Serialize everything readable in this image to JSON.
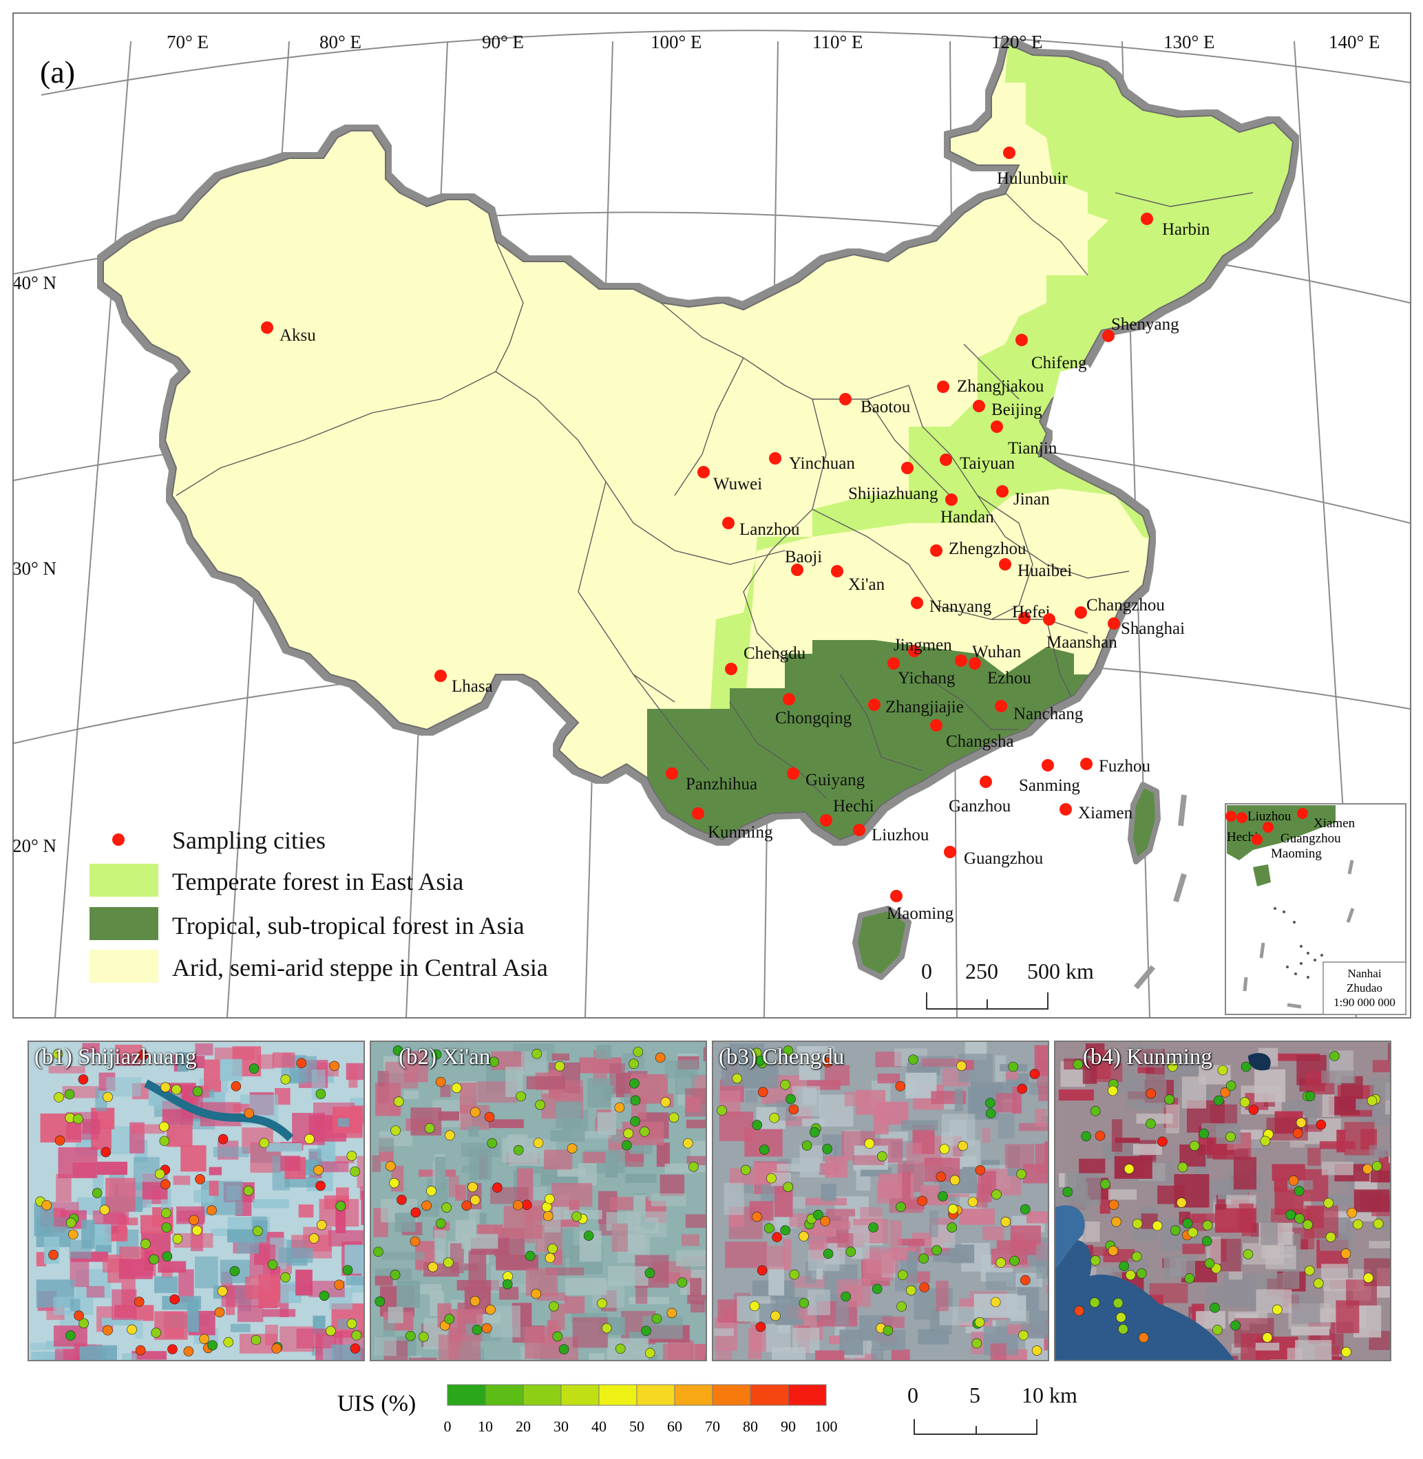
{
  "panel_a_label": "(a)",
  "longitude_labels": [
    "70° E",
    "80° E",
    "90° E",
    "100° E",
    "110° E",
    "120° E",
    "130° E",
    "140° E"
  ],
  "latitude_labels": [
    "40° N",
    "30° N",
    "20° N"
  ],
  "legend": {
    "sampling": "Sampling cities",
    "temperate": "Temperate forest in East Asia",
    "tropical": "Tropical, sub-tropical forest in Asia",
    "arid": "Arid, semi-arid steppe in Central Asia"
  },
  "colors": {
    "temperate": "#c9f57a",
    "tropical": "#5e8c46",
    "arid": "#fdfdc6",
    "city_dot": "#ff1a0a",
    "border_shadow": "#8c8c8c"
  },
  "cities": [
    "Hulunbuir",
    "Harbin",
    "Aksu",
    "Shenyang",
    "Chifeng",
    "Zhangjiakou",
    "Baotou",
    "Beijing",
    "Tianjin",
    "Yinchuan",
    "Taiyuan",
    "Wuwei",
    "Shijiazhuang",
    "Jinan",
    "Handan",
    "Lanzhou",
    "Zhengzhou",
    "Baoji",
    "Xi'an",
    "Huaibei",
    "Nanyang",
    "Hefei",
    "Changzhou",
    "Maanshan",
    "Shanghai",
    "Jingmen",
    "Wuhan",
    "Yichang",
    "Ezhou",
    "Chengdu",
    "Lhasa",
    "Chongqing",
    "Zhangjiajie",
    "Nanchang",
    "Changsha",
    "Panzhihua",
    "Guiyang",
    "Sanming",
    "Fuzhou",
    "Ganzhou",
    "Hechi",
    "Kunming",
    "Liuzhou",
    "Xiamen",
    "Guangzhou",
    "Maoming"
  ],
  "map_scale": {
    "ticks": [
      "0",
      "250",
      "500 km"
    ]
  },
  "inset": {
    "cities": [
      "Liuzhou",
      "Xiamen",
      "Hechi",
      "Guangzhou",
      "Maoming"
    ],
    "caption_lines": [
      "Nanhai",
      "Zhudao",
      "1:90 000 000"
    ]
  },
  "panels": [
    {
      "label": "(b1) Shijiazhuang"
    },
    {
      "label": "(b2) Xi'an"
    },
    {
      "label": "(b3) Chengdu"
    },
    {
      "label": "(b4) Kunming"
    }
  ],
  "uis_legend": {
    "title": "UIS (%)",
    "ticks": [
      "0",
      "10",
      "20",
      "30",
      "40",
      "50",
      "60",
      "70",
      "80",
      "90",
      "100"
    ],
    "colors": [
      "#2aa81a",
      "#5cbd14",
      "#8ccf14",
      "#c0e014",
      "#eef214",
      "#f5d81f",
      "#f7a814",
      "#f77a0f",
      "#f5460f",
      "#f51a0f"
    ]
  },
  "panel_scale": {
    "ticks": [
      "0",
      "5",
      "10 km"
    ]
  }
}
